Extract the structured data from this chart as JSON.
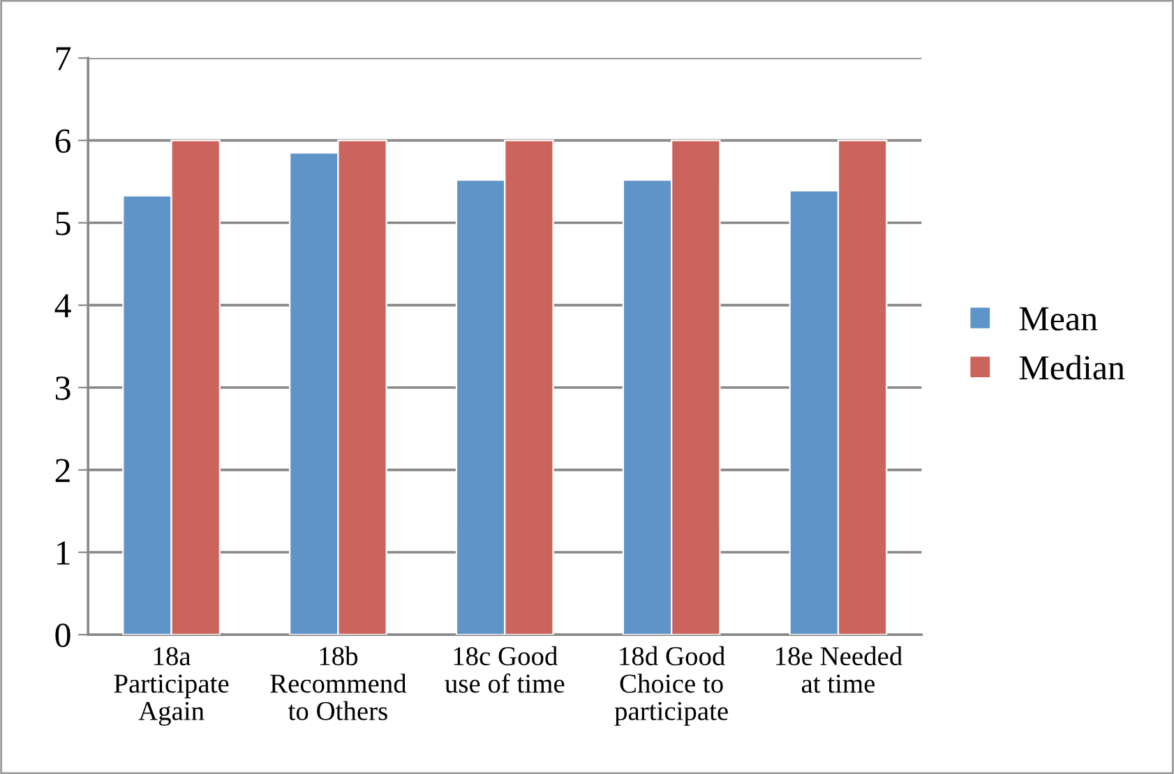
{
  "chart_data": {
    "type": "bar",
    "categories": [
      "18a\nParticipate\nAgain",
      "18b\nRecommend\nto Others",
      "18c Good\nuse of time",
      "18d Good\nChoice to\nparticipate",
      "18e Needed\nat time"
    ],
    "series": [
      {
        "name": "Mean",
        "color": "#5f94c9",
        "values": [
          5.33,
          5.85,
          5.52,
          5.52,
          5.39
        ]
      },
      {
        "name": "Median",
        "color": "#cc645e",
        "values": [
          6,
          6,
          6,
          6,
          6
        ]
      }
    ],
    "ylim": [
      0,
      7
    ],
    "yticks": [
      0,
      1,
      2,
      3,
      4,
      5,
      6,
      7
    ],
    "grid": "y",
    "legend": "right"
  }
}
